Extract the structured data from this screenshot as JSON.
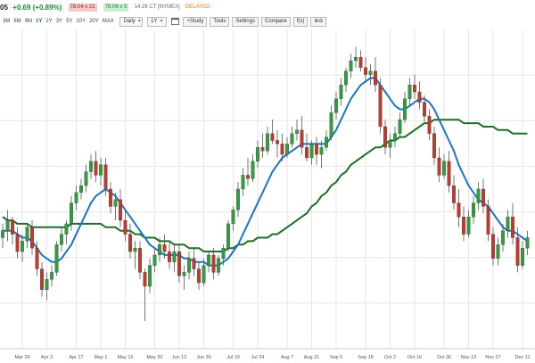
{
  "header": {
    "symbol": "05",
    "change": "+0.69 (+0.89%)",
    "bid": "78.04 x 21",
    "ask": "78.06 x 5",
    "quote_time": "14:26 CT [NYMEX]",
    "delayed": "DELAYED"
  },
  "toolbar": {
    "periods": [
      "3M",
      "6M",
      "9M",
      "1Y",
      "2Y",
      "3Y",
      "5Y",
      "10Y",
      "20Y",
      "MAX"
    ],
    "interval": "Daily",
    "range": "1Y",
    "buttons": [
      "+Study",
      "Tools",
      "Settings",
      "Compare",
      "f(x)",
      "⊕⊖"
    ]
  },
  "colors": {
    "up": "#2e9e3f",
    "down": "#c0392b",
    "ma_short": "#1a75c9",
    "ma_long": "#1f6e2a",
    "grid": "#e6e6e6",
    "axis_text": "#555555"
  },
  "chart_data": {
    "type": "line",
    "title": "",
    "xlabel": "",
    "ylabel": "",
    "x_labels": [
      "Mar 20",
      "Apr 3",
      "Apr 17",
      "May 1",
      "May 15",
      "May 30",
      "Jun 12",
      "Jun 26",
      "Jul 10",
      "Jul 24",
      "Aug 7",
      "Aug 21",
      "Sep 5",
      "Sep 18",
      "Oct 2",
      "Oct 16",
      "Oct 30",
      "Nov 13",
      "Nov 27",
      "Dec 11"
    ],
    "grid": true,
    "series": [
      {
        "kind": "candlestick",
        "values": [
          [
            32,
            36,
            29,
            34
          ],
          [
            34,
            40,
            31,
            37
          ],
          [
            37,
            38,
            30,
            33
          ],
          [
            33,
            35,
            26,
            28
          ],
          [
            28,
            33,
            25,
            31
          ],
          [
            31,
            36,
            29,
            35
          ],
          [
            35,
            37,
            27,
            29
          ],
          [
            29,
            31,
            21,
            23
          ],
          [
            23,
            25,
            15,
            17
          ],
          [
            17,
            22,
            14,
            20
          ],
          [
            20,
            24,
            18,
            22
          ],
          [
            22,
            31,
            21,
            30
          ],
          [
            30,
            35,
            28,
            33
          ],
          [
            33,
            37,
            30,
            36
          ],
          [
            36,
            44,
            34,
            42
          ],
          [
            42,
            47,
            40,
            45
          ],
          [
            45,
            49,
            43,
            47
          ],
          [
            47,
            53,
            45,
            51
          ],
          [
            51,
            56,
            49,
            54
          ],
          [
            54,
            57,
            48,
            50
          ],
          [
            50,
            55,
            47,
            53
          ],
          [
            53,
            55,
            44,
            46
          ],
          [
            46,
            48,
            39,
            41
          ],
          [
            41,
            45,
            37,
            43
          ],
          [
            43,
            46,
            35,
            37
          ],
          [
            37,
            40,
            31,
            33
          ],
          [
            33,
            36,
            26,
            28
          ],
          [
            28,
            31,
            23,
            29
          ],
          [
            29,
            31,
            20,
            22
          ],
          [
            22,
            23,
            8,
            18
          ],
          [
            18,
            26,
            16,
            24
          ],
          [
            24,
            29,
            22,
            27
          ],
          [
            27,
            32,
            25,
            30
          ],
          [
            30,
            33,
            26,
            28
          ],
          [
            28,
            31,
            23,
            25
          ],
          [
            25,
            30,
            22,
            28
          ],
          [
            28,
            30,
            19,
            21
          ],
          [
            21,
            24,
            17,
            22
          ],
          [
            22,
            28,
            20,
            26
          ],
          [
            26,
            29,
            21,
            23
          ],
          [
            23,
            25,
            17,
            19
          ],
          [
            19,
            26,
            18,
            24
          ],
          [
            24,
            28,
            22,
            27
          ],
          [
            27,
            29,
            20,
            22
          ],
          [
            22,
            27,
            21,
            26
          ],
          [
            26,
            30,
            24,
            29
          ],
          [
            29,
            37,
            28,
            36
          ],
          [
            36,
            41,
            34,
            40
          ],
          [
            40,
            48,
            38,
            46
          ],
          [
            46,
            52,
            44,
            50
          ],
          [
            50,
            55,
            47,
            49
          ],
          [
            49,
            56,
            48,
            54
          ],
          [
            54,
            60,
            52,
            58
          ],
          [
            58,
            62,
            55,
            57
          ],
          [
            57,
            64,
            56,
            62
          ],
          [
            62,
            66,
            59,
            60
          ],
          [
            60,
            63,
            55,
            59
          ],
          [
            59,
            62,
            54,
            56
          ],
          [
            56,
            61,
            55,
            59
          ],
          [
            59,
            64,
            58,
            62
          ],
          [
            62,
            66,
            60,
            63
          ],
          [
            63,
            67,
            56,
            58
          ],
          [
            58,
            62,
            54,
            55
          ],
          [
            55,
            60,
            53,
            59
          ],
          [
            59,
            61,
            53,
            56
          ],
          [
            56,
            60,
            52,
            58
          ],
          [
            58,
            63,
            57,
            61
          ],
          [
            61,
            70,
            60,
            68
          ],
          [
            68,
            74,
            66,
            72
          ],
          [
            72,
            78,
            70,
            76
          ],
          [
            76,
            81,
            74,
            80
          ],
          [
            80,
            85,
            78,
            83
          ],
          [
            83,
            87,
            81,
            84
          ],
          [
            84,
            86,
            80,
            81
          ],
          [
            81,
            84,
            77,
            79
          ],
          [
            79,
            82,
            76,
            80
          ],
          [
            80,
            84,
            74,
            76
          ],
          [
            76,
            78,
            62,
            64
          ],
          [
            64,
            66,
            56,
            58
          ],
          [
            58,
            62,
            55,
            60
          ],
          [
            60,
            64,
            58,
            62
          ],
          [
            62,
            68,
            61,
            66
          ],
          [
            66,
            74,
            65,
            72
          ],
          [
            72,
            78,
            70,
            76
          ],
          [
            76,
            79,
            72,
            74
          ],
          [
            74,
            77,
            69,
            71
          ],
          [
            71,
            73,
            65,
            67
          ],
          [
            67,
            69,
            60,
            62
          ],
          [
            62,
            64,
            53,
            55
          ],
          [
            55,
            58,
            48,
            50
          ],
          [
            50,
            56,
            49,
            54
          ],
          [
            54,
            57,
            45,
            47
          ],
          [
            47,
            50,
            40,
            42
          ],
          [
            42,
            46,
            35,
            38
          ],
          [
            38,
            41,
            31,
            33
          ],
          [
            33,
            40,
            32,
            38
          ],
          [
            38,
            44,
            36,
            42
          ],
          [
            42,
            48,
            40,
            46
          ],
          [
            46,
            49,
            39,
            41
          ],
          [
            41,
            43,
            31,
            33
          ],
          [
            33,
            35,
            24,
            26
          ],
          [
            26,
            32,
            24,
            30
          ],
          [
            30,
            36,
            28,
            34
          ],
          [
            34,
            40,
            32,
            38
          ],
          [
            38,
            42,
            30,
            32
          ],
          [
            32,
            35,
            22,
            24
          ],
          [
            24,
            31,
            23,
            29
          ],
          [
            29,
            34,
            27,
            32
          ]
        ]
      },
      {
        "kind": "ma_short",
        "values": [
          34,
          34,
          34,
          33,
          32,
          32,
          31,
          29,
          27,
          26,
          25,
          25,
          26,
          28,
          30,
          33,
          36,
          39,
          42,
          44,
          45,
          46,
          45,
          44,
          42,
          40,
          38,
          36,
          34,
          32,
          30,
          29,
          28,
          27,
          27,
          27,
          27,
          26,
          26,
          25,
          25,
          25,
          24,
          24,
          24,
          25,
          26,
          28,
          30,
          33,
          36,
          39,
          42,
          45,
          48,
          51,
          53,
          55,
          56,
          57,
          58,
          59,
          59,
          59,
          59,
          59,
          59,
          61,
          63,
          66,
          69,
          72,
          74,
          76,
          77,
          78,
          78,
          76,
          74,
          72,
          70,
          69,
          69,
          70,
          71,
          72,
          72,
          71,
          69,
          66,
          63,
          60,
          57,
          53,
          50,
          47,
          45,
          43,
          42,
          41,
          39,
          37,
          35,
          34,
          34,
          33,
          32,
          31
        ]
      },
      {
        "kind": "ma_long",
        "values": [
          38,
          37,
          37,
          36,
          36,
          36,
          35,
          35,
          35,
          35,
          35,
          35,
          35,
          35,
          36,
          36,
          36,
          36,
          36,
          36,
          36,
          35,
          35,
          35,
          34,
          34,
          34,
          33,
          33,
          32,
          32,
          32,
          31,
          31,
          31,
          30,
          30,
          30,
          29,
          29,
          29,
          28,
          28,
          28,
          28,
          28,
          29,
          29,
          30,
          30,
          31,
          31,
          32,
          32,
          32,
          33,
          33,
          34,
          35,
          36,
          37,
          38,
          39,
          41,
          42,
          44,
          45,
          47,
          48,
          50,
          51,
          53,
          54,
          55,
          56,
          57,
          58,
          58,
          59,
          60,
          60,
          61,
          61,
          62,
          63,
          64,
          65,
          65,
          66,
          66,
          66,
          66,
          66,
          66,
          65,
          65,
          65,
          65,
          64,
          64,
          64,
          63,
          63,
          63,
          62,
          62,
          62,
          62
        ]
      }
    ]
  }
}
